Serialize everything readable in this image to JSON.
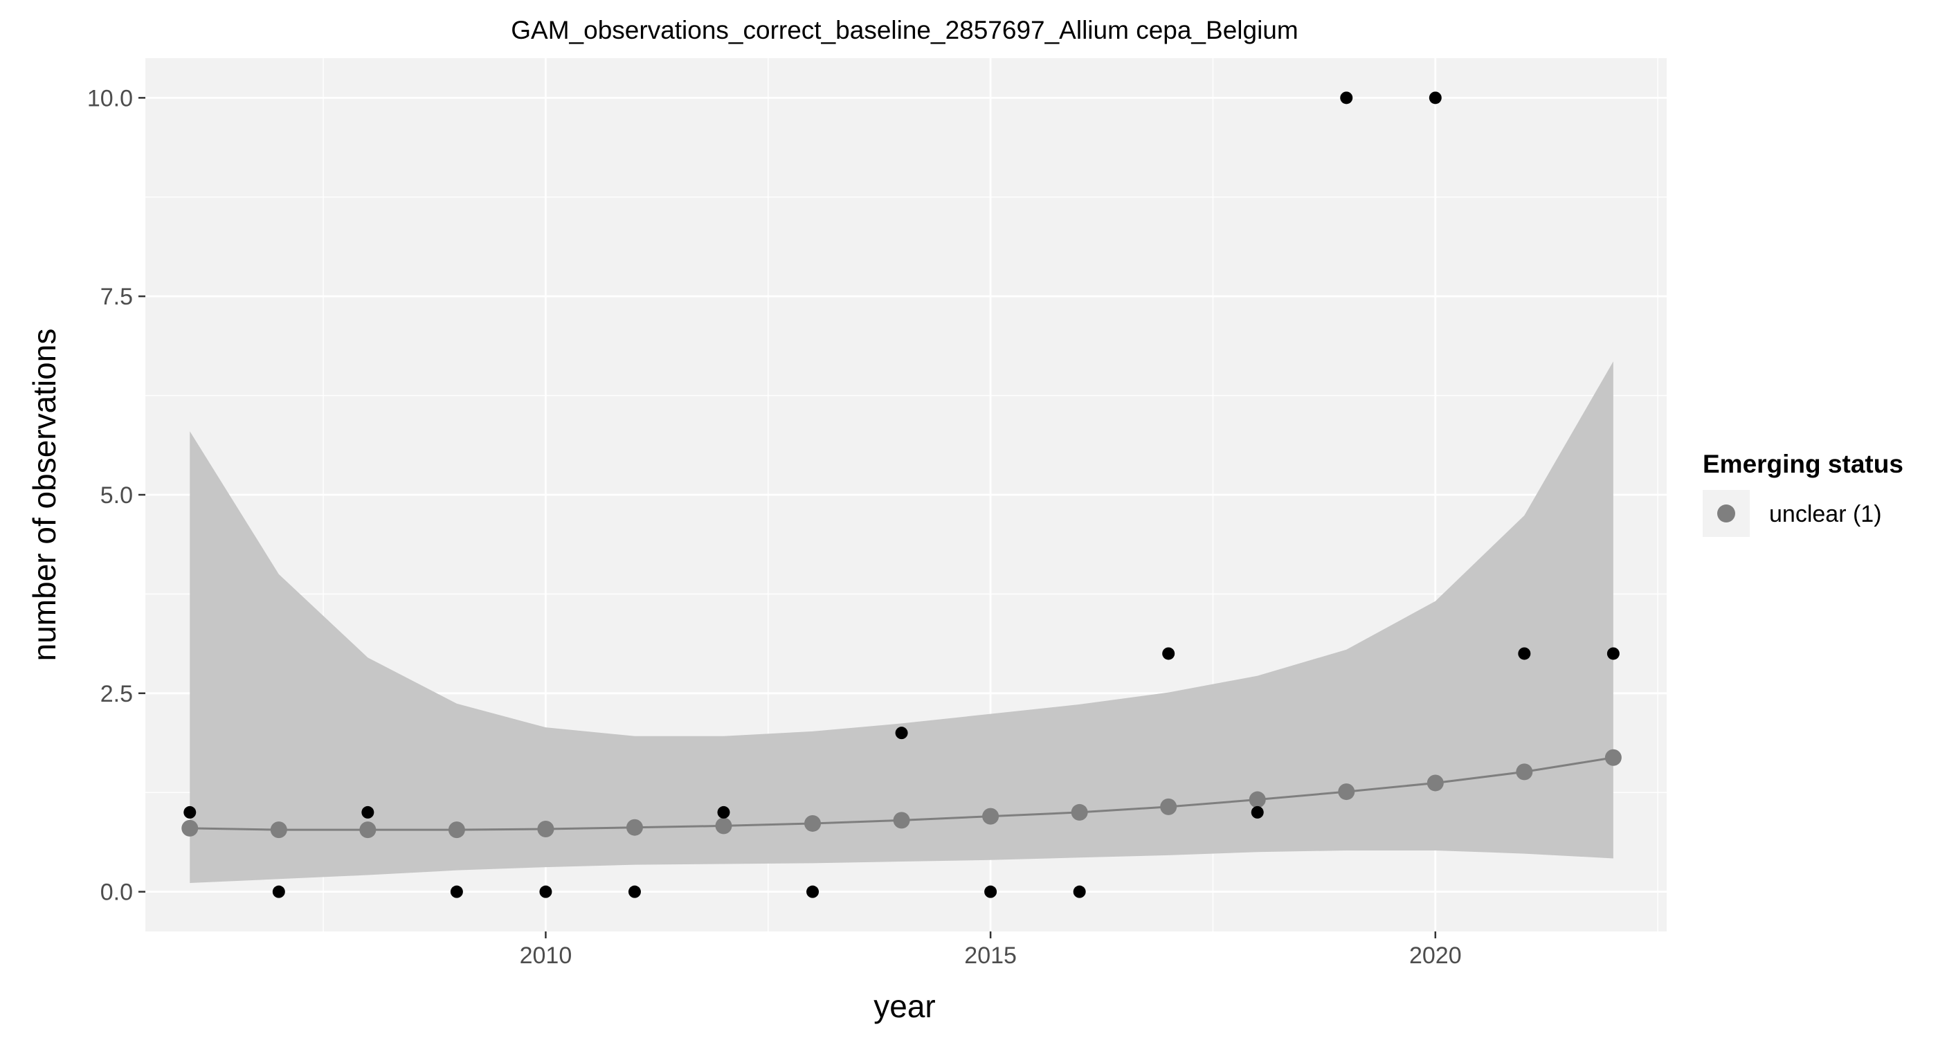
{
  "chart_data": {
    "type": "scatter",
    "title": "GAM_observations_correct_baseline_2857697_Allium cepa_Belgium",
    "xlabel": "year",
    "ylabel": "number of observations",
    "xlim": [
      2005.5,
      2022.6
    ],
    "ylim": [
      -0.5,
      10.5
    ],
    "x_ticks": [
      2010,
      2015,
      2020
    ],
    "x_tick_labels": [
      "2010",
      "2015",
      "2020"
    ],
    "y_ticks": [
      0,
      2.5,
      5,
      7.5,
      10
    ],
    "y_tick_labels": [
      "0.0",
      "2.5",
      "5.0",
      "7.5",
      "10.0"
    ],
    "grid": true,
    "legend": {
      "title": "Emerging status",
      "placement": "right",
      "entries": [
        {
          "label": "unclear (1)",
          "color": "#7f7f7f"
        }
      ]
    },
    "colors": {
      "panel_background": "#f2f2f2",
      "grid": "#ffffff",
      "ribbon": "#c6c6c6",
      "fit": "#7f7f7f",
      "observations": "#000000"
    },
    "series": [
      {
        "kind": "observations",
        "x": [
          2006,
          2007,
          2008,
          2009,
          2010,
          2011,
          2012,
          2013,
          2014,
          2015,
          2016,
          2017,
          2018,
          2019,
          2020,
          2021,
          2022
        ],
        "y": [
          1,
          0,
          1,
          0,
          0,
          0,
          1,
          0,
          2,
          0,
          0,
          3,
          1,
          10,
          10,
          3,
          3
        ]
      },
      {
        "kind": "fit",
        "name": "unclear (1)",
        "x": [
          2006,
          2007,
          2008,
          2009,
          2010,
          2011,
          2012,
          2013,
          2014,
          2015,
          2016,
          2017,
          2018,
          2019,
          2020,
          2021,
          2022
        ],
        "y": [
          0.8,
          0.78,
          0.78,
          0.78,
          0.79,
          0.81,
          0.83,
          0.86,
          0.9,
          0.95,
          1.0,
          1.07,
          1.16,
          1.26,
          1.37,
          1.51,
          1.69
        ],
        "lower": [
          0.11,
          0.16,
          0.21,
          0.27,
          0.31,
          0.34,
          0.35,
          0.36,
          0.38,
          0.4,
          0.43,
          0.46,
          0.5,
          0.52,
          0.52,
          0.48,
          0.42
        ],
        "upper": [
          5.8,
          4.0,
          2.95,
          2.37,
          2.07,
          1.96,
          1.96,
          2.02,
          2.12,
          2.24,
          2.36,
          2.51,
          2.72,
          3.05,
          3.66,
          4.74,
          6.68
        ]
      }
    ]
  }
}
